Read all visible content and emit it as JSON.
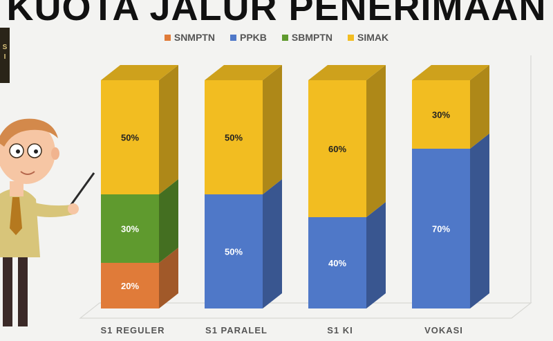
{
  "title": "KUOTA JALUR PENERIMAAN",
  "legend": [
    {
      "name": "SNMPTN",
      "color": "#e07b39"
    },
    {
      "name": "PPKB",
      "color": "#4f78c8"
    },
    {
      "name": "SBMPTN",
      "color": "#5f9a2e"
    },
    {
      "name": "SIMAK",
      "color": "#f2bd21"
    }
  ],
  "logo_text": "S\nI",
  "chart_data": {
    "type": "bar",
    "stacked": true,
    "three_d": true,
    "categories": [
      "S1 REGULER",
      "S1 PARALEL",
      "S1 KI",
      "VOKASI"
    ],
    "series": [
      {
        "name": "SNMPTN",
        "color": "#e07b39",
        "values": [
          20,
          0,
          0,
          0
        ]
      },
      {
        "name": "PPKB",
        "color": "#4f78c8",
        "values": [
          0,
          50,
          40,
          70
        ]
      },
      {
        "name": "SBMPTN",
        "color": "#5f9a2e",
        "values": [
          30,
          0,
          0,
          0
        ]
      },
      {
        "name": "SIMAK",
        "color": "#f2bd21",
        "values": [
          50,
          50,
          60,
          30
        ]
      }
    ],
    "value_suffix": "%",
    "ylim": [
      0,
      100
    ],
    "legend_position": "top"
  }
}
